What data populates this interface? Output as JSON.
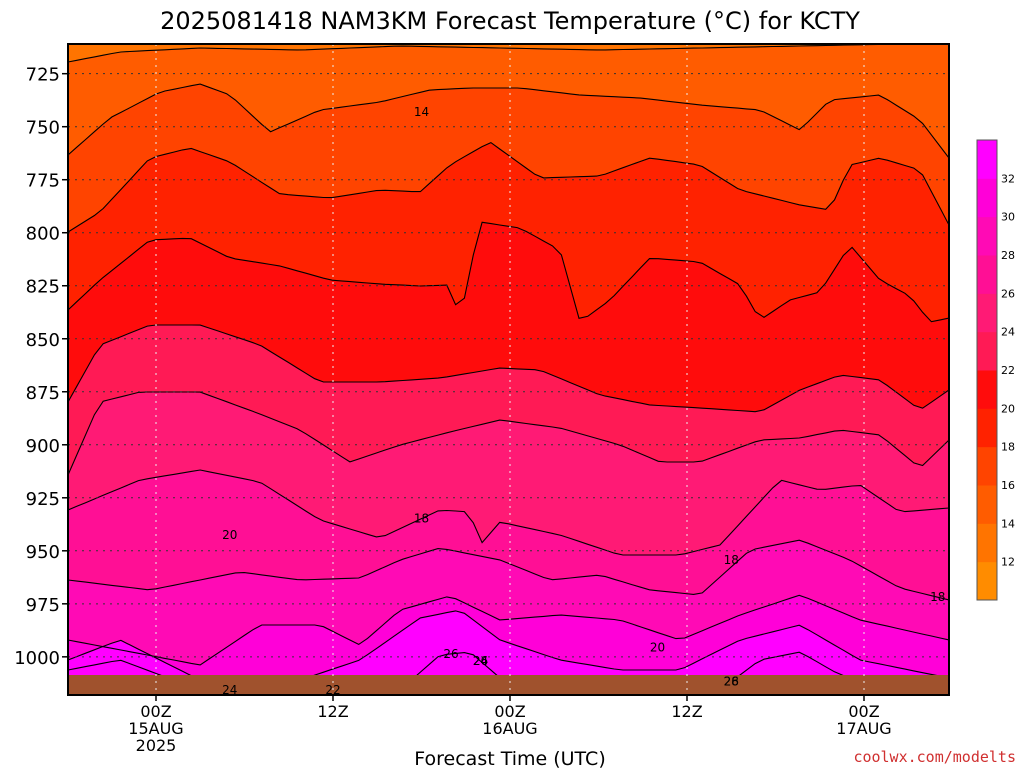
{
  "chart_data": {
    "type": "heatmap",
    "title": "2025081418 NAM3KM Forecast Temperature (°C) for KCTY",
    "xlabel": "Forecast Time (UTC)",
    "ylabel": "",
    "y_ticks": [
      725,
      750,
      775,
      800,
      825,
      850,
      875,
      900,
      925,
      950,
      975,
      1000
    ],
    "ylim": [
      1018,
      711
    ],
    "x_ticks": [
      {
        "lines": [
          "00Z",
          "15AUG",
          "2025"
        ]
      },
      {
        "lines": [
          "12Z"
        ]
      },
      {
        "lines": [
          "00Z",
          "16AUG"
        ]
      },
      {
        "lines": [
          "12Z"
        ]
      },
      {
        "lines": [
          "00Z",
          "17AUG"
        ]
      }
    ],
    "colorbar": {
      "ticks": [
        "12",
        "14",
        "16",
        "18",
        "20",
        "22",
        "24",
        "26",
        "28",
        "30",
        "32"
      ],
      "colors": [
        "#ff8c00",
        "#ff7400",
        "#ff5c00",
        "#ff4400",
        "#ff2200",
        "#ff0c0c",
        "#ff1a55",
        "#ff1a75",
        "#ff0f95",
        "#ff0ab5",
        "#ff00d8",
        "#ff00ff"
      ]
    },
    "grid": true,
    "ground_color": "#a0522d",
    "contour_labels": [
      {
        "text": "14",
        "pos": [
          18,
          1.2
        ]
      },
      {
        "text": "14",
        "pos": [
          68,
          1.2
        ]
      },
      {
        "text": "16",
        "pos": [
          71,
          3.6
        ]
      },
      {
        "text": "18",
        "pos": [
          18,
          6.0
        ]
      },
      {
        "text": "18",
        "pos": [
          39,
          6.8
        ]
      },
      {
        "text": "18",
        "pos": [
          53,
          7.0
        ]
      },
      {
        "text": "20",
        "pos": [
          5,
          6.6
        ]
      },
      {
        "text": "20",
        "pos": [
          34,
          8.4
        ]
      },
      {
        "text": "20",
        "pos": [
          65,
          9.0
        ]
      },
      {
        "text": "22",
        "pos": [
          12,
          10.4
        ]
      },
      {
        "text": "22",
        "pos": [
          72,
          10.2
        ]
      },
      {
        "text": "24",
        "pos": [
          5,
          13.6
        ]
      },
      {
        "text": "24",
        "pos": [
          22,
          12.9
        ]
      },
      {
        "text": "24",
        "pos": [
          68,
          11.7
        ]
      },
      {
        "text": "26",
        "pos": [
          22,
          14.5
        ]
      },
      {
        "text": "26",
        "pos": [
          20,
          15.4
        ]
      },
      {
        "text": "26",
        "pos": [
          39,
          12.6
        ]
      },
      {
        "text": "26",
        "pos": [
          63,
          12.5
        ]
      },
      {
        "text": "28",
        "pos": [
          39,
          14.0
        ]
      },
      {
        "text": "28",
        "pos": [
          63,
          14.6
        ]
      }
    ]
  },
  "watermark": "coolwx.com/modelts",
  "watermark_color": "#d03030"
}
